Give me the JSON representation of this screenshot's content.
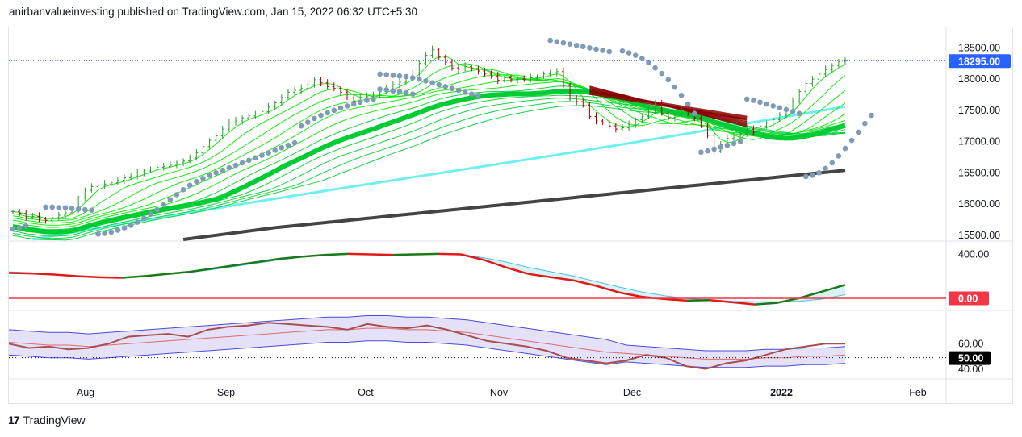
{
  "header": {
    "text": "anirbanvalueinvesting published on TradingView.com, Jan 15, 2022 06:32 UTC+5:30"
  },
  "footer": {
    "brand": "TradingView",
    "logo_glyph": "17"
  },
  "colors": {
    "up_candle": "#2e9c2e",
    "down_candle": "#b20000",
    "psar": "#7f9bb8",
    "ema_fast": "#00e600",
    "ema_slow": "#00cc33",
    "cyan_ma": "#6ef0f0",
    "ma_200": "#444444",
    "ribbon_bear": "#8b0000",
    "price_badge": "#2962ff",
    "zero_badge": "#f23645",
    "rsi_line": "#a94f4f",
    "rsi_ma": "#e06b6b",
    "band_fill": "#d8d4f5",
    "band_line": "#4a4ad8"
  },
  "chart_data": [
    {
      "type": "candlestick",
      "pane": "price",
      "instrument_last": 18295.0,
      "last_label": "18295.00",
      "y_ticks": [
        "18500.00",
        "18000.00",
        "17500.00",
        "17000.00",
        "16500.00",
        "16000.00",
        "15500.00"
      ],
      "ylim": [
        15420,
        18750
      ],
      "x_ticks": [
        "Aug",
        "Sep",
        "Oct",
        "Nov",
        "Dec",
        "2022",
        "Feb"
      ],
      "close": [
        15880,
        15850,
        15790,
        15800,
        15760,
        15740,
        15780,
        15820,
        15860,
        15900,
        16100,
        16220,
        16280,
        16300,
        16320,
        16340,
        16380,
        16420,
        16440,
        16500,
        16530,
        16560,
        16590,
        16600,
        16620,
        16660,
        16690,
        16740,
        16820,
        16920,
        17020,
        17090,
        17200,
        17300,
        17330,
        17380,
        17410,
        17440,
        17480,
        17550,
        17620,
        17710,
        17790,
        17820,
        17850,
        17910,
        17990,
        17940,
        17880,
        17850,
        17790,
        17700,
        17650,
        17700,
        17720,
        17760,
        17800,
        17850,
        17910,
        17950,
        18010,
        18100,
        18250,
        18380,
        18470,
        18350,
        18270,
        18180,
        18160,
        18200,
        18170,
        18130,
        18080,
        18050,
        17980,
        18020,
        17990,
        18000,
        17990,
        18020,
        18040,
        18080,
        18100,
        18120,
        17900,
        17700,
        17640,
        17580,
        17400,
        17330,
        17300,
        17250,
        17200,
        17220,
        17270,
        17350,
        17400,
        17500,
        17600,
        17450,
        17380,
        17420,
        17500,
        17450,
        17380,
        17250,
        17100,
        16850,
        16950,
        17050,
        17100,
        17120,
        17200,
        17150,
        17250,
        17300,
        17350,
        17420,
        17500,
        17640,
        17800,
        17930,
        18000,
        18080,
        18150,
        18220,
        18280,
        18295
      ],
      "psar": [
        [
          0,
          15600
        ],
        [
          1,
          15620
        ],
        [
          2,
          15650
        ],
        [
          5,
          15950
        ],
        [
          6,
          15950
        ],
        [
          7,
          15940
        ],
        [
          8,
          15940
        ],
        [
          9,
          15930
        ],
        [
          10,
          15920
        ],
        [
          11,
          15910
        ],
        [
          12,
          15900
        ],
        [
          13,
          15520
        ],
        [
          14,
          15530
        ],
        [
          15,
          15550
        ],
        [
          16,
          15580
        ],
        [
          17,
          15620
        ],
        [
          18,
          15660
        ],
        [
          19,
          15710
        ],
        [
          20,
          15770
        ],
        [
          21,
          15840
        ],
        [
          22,
          15910
        ],
        [
          23,
          15990
        ],
        [
          24,
          16070
        ],
        [
          25,
          16150
        ],
        [
          26,
          16230
        ],
        [
          27,
          16300
        ],
        [
          28,
          16360
        ],
        [
          29,
          16410
        ],
        [
          30,
          16460
        ],
        [
          31,
          16500
        ],
        [
          32,
          16540
        ],
        [
          33,
          16580
        ],
        [
          34,
          16620
        ],
        [
          35,
          16660
        ],
        [
          36,
          16700
        ],
        [
          37,
          16740
        ],
        [
          38,
          16780
        ],
        [
          39,
          16820
        ],
        [
          40,
          16860
        ],
        [
          41,
          16900
        ],
        [
          42,
          16940
        ],
        [
          43,
          16980
        ],
        [
          44,
          17250
        ],
        [
          45,
          17310
        ],
        [
          46,
          17370
        ],
        [
          47,
          17420
        ],
        [
          48,
          17460
        ],
        [
          49,
          17500
        ],
        [
          50,
          17540
        ],
        [
          51,
          17570
        ],
        [
          52,
          17600
        ],
        [
          53,
          17630
        ],
        [
          54,
          17660
        ],
        [
          55,
          17680
        ],
        [
          56,
          17840
        ],
        [
          57,
          17830
        ],
        [
          58,
          17810
        ],
        [
          59,
          17800
        ],
        [
          60,
          17780
        ],
        [
          61,
          17760
        ],
        [
          56,
          18080
        ],
        [
          57,
          18070
        ],
        [
          58,
          18060
        ],
        [
          59,
          18050
        ],
        [
          60,
          18040
        ],
        [
          61,
          18020
        ],
        [
          62,
          18000
        ],
        [
          63,
          17970
        ],
        [
          64,
          17940
        ],
        [
          65,
          17910
        ],
        [
          66,
          17880
        ],
        [
          67,
          17850
        ],
        [
          68,
          17820
        ],
        [
          69,
          17790
        ],
        [
          70,
          17760
        ],
        [
          71,
          17740
        ],
        [
          82,
          18620
        ],
        [
          83,
          18600
        ],
        [
          84,
          18580
        ],
        [
          85,
          18560
        ],
        [
          86,
          18540
        ],
        [
          87,
          18520
        ],
        [
          88,
          18500
        ],
        [
          89,
          18480
        ],
        [
          90,
          18460
        ],
        [
          91,
          18440
        ],
        [
          93,
          18450
        ],
        [
          94,
          18420
        ],
        [
          95,
          18380
        ],
        [
          96,
          18330
        ],
        [
          97,
          18260
        ],
        [
          98,
          18180
        ],
        [
          99,
          18090
        ],
        [
          100,
          17990
        ],
        [
          101,
          17870
        ],
        [
          102,
          17740
        ],
        [
          103,
          17600
        ],
        [
          104,
          17450
        ],
        [
          105,
          16830
        ],
        [
          106,
          16850
        ],
        [
          107,
          16880
        ],
        [
          108,
          16910
        ],
        [
          109,
          16940
        ],
        [
          110,
          16970
        ],
        [
          111,
          17000
        ],
        [
          112,
          17680
        ],
        [
          113,
          17660
        ],
        [
          114,
          17630
        ],
        [
          115,
          17600
        ],
        [
          116,
          17570
        ],
        [
          117,
          17540
        ],
        [
          118,
          17510
        ],
        [
          119,
          17480
        ],
        [
          120,
          17450
        ],
        [
          121,
          16440
        ],
        [
          122,
          16460
        ],
        [
          123,
          16500
        ],
        [
          124,
          16570
        ],
        [
          125,
          16660
        ],
        [
          126,
          16770
        ],
        [
          127,
          16890
        ],
        [
          128,
          17020
        ],
        [
          129,
          17150
        ],
        [
          130,
          17290
        ],
        [
          131,
          17420
        ]
      ]
    },
    {
      "type": "line",
      "pane": "momentum",
      "y_ticks": [
        "400.00"
      ],
      "zero_label": "0.00",
      "ylim": [
        -100,
        500
      ],
      "series": [
        {
          "values": [
            230,
            225,
            215,
            200,
            190,
            185,
            200,
            220,
            240,
            270,
            300,
            330,
            360,
            380,
            395,
            405,
            400,
            395,
            400,
            405,
            400,
            350,
            280,
            220,
            190,
            160,
            110,
            50,
            10,
            -10,
            -25,
            -20,
            -40,
            -60,
            -45,
            0,
            60,
            120
          ]
        },
        {
          "values": [
            240,
            230,
            215,
            200,
            190,
            190,
            200,
            215,
            235,
            260,
            290,
            320,
            350,
            375,
            390,
            400,
            400,
            400,
            400,
            400,
            400,
            370,
            330,
            280,
            240,
            200,
            150,
            100,
            55,
            20,
            -5,
            -20,
            -30,
            -35,
            -35,
            -30,
            -10,
            30
          ]
        }
      ]
    },
    {
      "type": "line",
      "pane": "rsi",
      "y_ticks": [
        "60.00",
        "40.00"
      ],
      "marker_label": "50.00",
      "marker_value": 50,
      "ylim": [
        36,
        82
      ],
      "series": [
        {
          "values": [
            60,
            57,
            58,
            56,
            57,
            60,
            65,
            66,
            67,
            65,
            70,
            72,
            73,
            75,
            74,
            73,
            72,
            70,
            74,
            72,
            71,
            73,
            70,
            66,
            62,
            60,
            58,
            55,
            50,
            48,
            46,
            48,
            52,
            50,
            44,
            42,
            46,
            48,
            52,
            56,
            58,
            60,
            60
          ]
        },
        {
          "values": [
            61,
            60,
            59,
            59,
            58,
            59,
            60,
            61,
            62,
            63,
            64,
            65,
            66,
            67,
            68,
            69,
            70,
            70,
            71,
            71,
            70,
            70,
            69,
            68,
            66,
            64,
            62,
            60,
            58,
            56,
            54,
            53,
            52,
            51,
            50,
            49,
            49,
            49,
            50,
            50,
            51,
            51,
            52
          ]
        }
      ]
    }
  ]
}
